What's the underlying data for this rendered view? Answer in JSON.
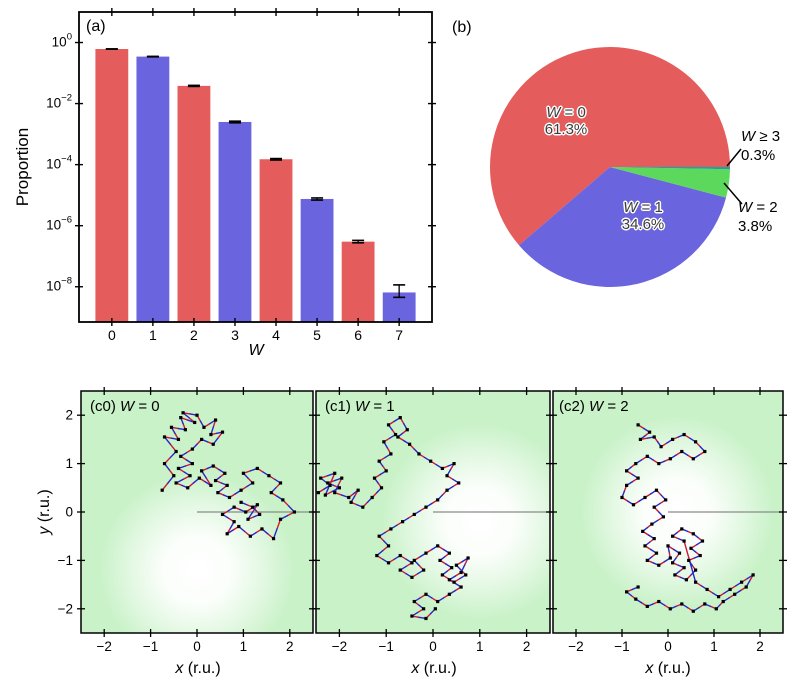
{
  "labels": {
    "panel_a": "(a)",
    "panel_b": "(b)",
    "proportion_ylabel": "Proportion",
    "w_xlabel": "W",
    "x_var": "x",
    "x_unit": " (r.u.)",
    "y_var": "y",
    "y_unit": " (r.u.)"
  },
  "pie_labels": {
    "w0": {
      "var": "W",
      "rest": " = 0",
      "pct": "61.3%"
    },
    "w1": {
      "var": "W",
      "rest": " = 1",
      "pct": "34.6%"
    },
    "w2": {
      "var": "W",
      "rest": " = 2",
      "pct": "3.8%"
    },
    "w3": {
      "var": "W",
      "rest": " ≥ 3",
      "pct": "0.3%"
    }
  },
  "panel_c_titles": [
    {
      "prefix": "(c0)",
      "var": "W",
      "rest": " = 0"
    },
    {
      "prefix": "(c1)",
      "var": "W",
      "rest": " = 1"
    },
    {
      "prefix": "(c2)",
      "var": "W",
      "rest": " = 2"
    }
  ],
  "colors": {
    "bar_red": "#e45c5c",
    "bar_blue": "#6a64de",
    "pie_green": "#5cd85c",
    "pie_teal": "#18a5a0",
    "panel_c_bg": "#c9f2c8",
    "traj_red": "#cc1733",
    "traj_blue": "#2626cc",
    "ref_line_gray": "#8a8a8a",
    "axis_black": "#000000"
  },
  "chart_data": [
    {
      "type": "bar",
      "panel": "a",
      "title": "(a)",
      "xlabel": "W",
      "ylabel": "Proportion",
      "yscale": "log",
      "categories": [
        "0",
        "1",
        "2",
        "3",
        "4",
        "5",
        "6",
        "7"
      ],
      "values": [
        0.613,
        0.346,
        0.038,
        0.0025,
        0.00015,
        7.5e-06,
        3e-07,
        6.5e-09
      ],
      "err_lo": [
        0.605,
        0.34,
        0.0365,
        0.00235,
        0.000142,
        6.9e-06,
        2.75e-07,
        4.5e-09
      ],
      "err_hi": [
        0.62,
        0.352,
        0.0395,
        0.00265,
        0.000158,
        8.1e-06,
        3.3e-07,
        1.15e-08
      ],
      "bar_width": 0.8,
      "xlim": [
        -0.8,
        7.8
      ],
      "ylim": [
        7e-10,
        10
      ],
      "ytick_exponents": [
        0,
        -2,
        -4,
        -6,
        -8
      ],
      "grid": false
    },
    {
      "type": "pie",
      "panel": "b",
      "title": "(b)",
      "startangle": 0,
      "counterclock": true,
      "slices": [
        {
          "label": "W = 0",
          "pct": 61.3,
          "color": "#e45c5c",
          "label_position": "inside"
        },
        {
          "label": "W = 1",
          "pct": 34.6,
          "color": "#6a64de",
          "label_position": "inside"
        },
        {
          "label": "W = 2",
          "pct": 3.8,
          "color": "#5cd85c",
          "label_position": "outside"
        },
        {
          "label": "W ≥ 3",
          "pct": 0.3,
          "color": "#18a5a0",
          "label_position": "outside"
        }
      ]
    },
    {
      "type": "line",
      "panel": "c0",
      "title": "(c0) W = 0",
      "xlabel": "x (r.u.)",
      "ylabel": "y (r.u.)",
      "xlim": [
        -2.5,
        2.5
      ],
      "ylim": [
        -2.5,
        2.5
      ],
      "xticks": [
        "−2",
        "−1",
        "0",
        "1",
        "2"
      ],
      "yticks": [
        "2",
        "1",
        "0",
        "−1",
        "−2"
      ],
      "glow_center": [
        0.0,
        -1.2
      ],
      "glow_radius": 2.1,
      "ref_line": {
        "from": [
          0,
          0
        ],
        "to": [
          2.5,
          0
        ]
      },
      "points": [
        [
          -0.75,
          0.45
        ],
        [
          -0.5,
          0.75
        ],
        [
          -0.7,
          1.0
        ],
        [
          -0.45,
          1.25
        ],
        [
          -0.7,
          1.55
        ],
        [
          -0.4,
          1.5
        ],
        [
          -0.55,
          1.75
        ],
        [
          -0.25,
          1.7
        ],
        [
          -0.35,
          1.95
        ],
        [
          -0.05,
          1.85
        ],
        [
          -0.3,
          2.05
        ],
        [
          0.0,
          2.0
        ],
        [
          0.15,
          1.75
        ],
        [
          0.4,
          1.9
        ],
        [
          0.3,
          1.6
        ],
        [
          0.55,
          1.65
        ],
        [
          0.35,
          1.4
        ],
        [
          0.1,
          1.5
        ],
        [
          -0.1,
          1.3
        ],
        [
          -0.35,
          1.15
        ],
        [
          -0.1,
          1.0
        ],
        [
          -0.4,
          0.9
        ],
        [
          -0.15,
          0.75
        ],
        [
          -0.45,
          0.6
        ],
        [
          -0.2,
          0.5
        ],
        [
          0.05,
          0.7
        ],
        [
          0.3,
          0.55
        ],
        [
          0.1,
          0.85
        ],
        [
          0.35,
          0.95
        ],
        [
          0.6,
          0.8
        ],
        [
          0.4,
          0.65
        ],
        [
          0.65,
          0.55
        ],
        [
          0.45,
          0.4
        ],
        [
          0.7,
          0.3
        ],
        [
          0.95,
          0.45
        ],
        [
          1.2,
          0.6
        ],
        [
          1.0,
          0.8
        ],
        [
          1.3,
          0.9
        ],
        [
          1.55,
          0.75
        ],
        [
          1.8,
          0.6
        ],
        [
          1.6,
          0.4
        ],
        [
          1.85,
          0.25
        ],
        [
          2.1,
          0.0
        ],
        [
          1.8,
          -0.15
        ],
        [
          1.65,
          -0.55
        ],
        [
          1.4,
          -0.35
        ],
        [
          1.15,
          -0.5
        ],
        [
          0.9,
          -0.3
        ],
        [
          0.65,
          -0.45
        ],
        [
          0.8,
          -0.2
        ],
        [
          0.55,
          -0.05
        ],
        [
          0.8,
          0.1
        ],
        [
          1.05,
          0.0
        ],
        [
          1.3,
          0.15
        ],
        [
          1.1,
          -0.15
        ],
        [
          1.35,
          -0.05
        ],
        [
          1.2,
          0.1
        ],
        [
          0.95,
          0.2
        ]
      ]
    },
    {
      "type": "line",
      "panel": "c1",
      "title": "(c1) W = 1",
      "xlabel": "x (r.u.)",
      "ylabel": "",
      "xlim": [
        -2.5,
        2.5
      ],
      "ylim": [
        -2.5,
        2.5
      ],
      "xticks": [
        "−2",
        "−1",
        "0",
        "1",
        "2"
      ],
      "yticks": [],
      "glow_center": [
        1.0,
        -0.2
      ],
      "glow_radius": 2.1,
      "ref_line": {
        "from": [
          0,
          0
        ],
        "to": [
          2.5,
          0
        ]
      },
      "points": [
        [
          -2.45,
          0.4
        ],
        [
          -2.2,
          0.55
        ],
        [
          -2.4,
          0.7
        ],
        [
          -2.1,
          0.8
        ],
        [
          -2.3,
          0.35
        ],
        [
          -2.0,
          0.5
        ],
        [
          -2.25,
          0.6
        ],
        [
          -1.95,
          0.7
        ],
        [
          -2.1,
          0.4
        ],
        [
          -1.8,
          0.3
        ],
        [
          -1.6,
          0.45
        ],
        [
          -1.75,
          0.2
        ],
        [
          -1.5,
          0.1
        ],
        [
          -1.3,
          0.3
        ],
        [
          -1.1,
          0.5
        ],
        [
          -1.25,
          0.7
        ],
        [
          -1.0,
          0.85
        ],
        [
          -1.15,
          1.05
        ],
        [
          -0.9,
          1.2
        ],
        [
          -1.05,
          1.45
        ],
        [
          -0.8,
          1.6
        ],
        [
          -0.95,
          1.8
        ],
        [
          -0.7,
          1.95
        ],
        [
          -0.55,
          1.7
        ],
        [
          -0.75,
          1.55
        ],
        [
          -0.5,
          1.4
        ],
        [
          -0.3,
          1.2
        ],
        [
          -0.05,
          1.05
        ],
        [
          0.2,
          0.9
        ],
        [
          0.45,
          1.0
        ],
        [
          0.3,
          0.75
        ],
        [
          0.55,
          0.6
        ],
        [
          0.3,
          0.45
        ],
        [
          0.1,
          0.25
        ],
        [
          -0.15,
          0.1
        ],
        [
          -0.4,
          -0.05
        ],
        [
          -0.65,
          -0.2
        ],
        [
          -0.9,
          -0.35
        ],
        [
          -1.15,
          -0.5
        ],
        [
          -0.95,
          -0.7
        ],
        [
          -1.2,
          -0.9
        ],
        [
          -0.95,
          -1.05
        ],
        [
          -0.7,
          -0.9
        ],
        [
          -0.45,
          -1.05
        ],
        [
          -0.7,
          -1.2
        ],
        [
          -0.45,
          -1.35
        ],
        [
          -0.2,
          -1.2
        ],
        [
          -0.4,
          -1.0
        ],
        [
          -0.15,
          -0.85
        ],
        [
          0.1,
          -0.7
        ],
        [
          0.35,
          -0.85
        ],
        [
          0.15,
          -1.0
        ],
        [
          0.4,
          -1.15
        ],
        [
          0.2,
          -1.3
        ],
        [
          0.45,
          -1.45
        ],
        [
          0.7,
          -1.3
        ],
        [
          0.5,
          -1.1
        ],
        [
          0.75,
          -0.95
        ],
        [
          0.6,
          -1.25
        ],
        [
          0.35,
          -1.4
        ],
        [
          0.6,
          -1.55
        ],
        [
          0.35,
          -1.7
        ],
        [
          0.1,
          -1.85
        ],
        [
          -0.15,
          -1.7
        ],
        [
          -0.4,
          -1.85
        ],
        [
          -0.2,
          -2.0
        ],
        [
          -0.45,
          -2.15
        ],
        [
          -0.15,
          -2.2
        ],
        [
          0.05,
          -2.0
        ]
      ]
    },
    {
      "type": "line",
      "panel": "c2",
      "title": "(c2) W = 2",
      "xlabel": "x (r.u.)",
      "ylabel": "",
      "xlim": [
        -2.5,
        2.5
      ],
      "ylim": [
        -2.5,
        2.5
      ],
      "xticks": [
        "−2",
        "−1",
        "0",
        "1",
        "2"
      ],
      "yticks": [],
      "glow_center": [
        0.2,
        0.0
      ],
      "glow_radius": 2.1,
      "ref_line": {
        "from": [
          0,
          0
        ],
        "to": [
          2.5,
          0
        ]
      },
      "points": [
        [
          -0.65,
          1.8
        ],
        [
          -0.4,
          1.65
        ],
        [
          -0.6,
          1.5
        ],
        [
          -0.3,
          1.55
        ],
        [
          -0.15,
          1.35
        ],
        [
          0.1,
          1.5
        ],
        [
          0.35,
          1.6
        ],
        [
          0.6,
          1.45
        ],
        [
          0.8,
          1.25
        ],
        [
          0.55,
          1.1
        ],
        [
          0.3,
          1.25
        ],
        [
          0.05,
          1.1
        ],
        [
          -0.2,
          1.0
        ],
        [
          -0.45,
          1.15
        ],
        [
          -0.7,
          1.0
        ],
        [
          -0.9,
          0.85
        ],
        [
          -0.65,
          0.7
        ],
        [
          -0.9,
          0.55
        ],
        [
          -1.0,
          0.3
        ],
        [
          -0.75,
          0.15
        ],
        [
          -0.5,
          0.3
        ],
        [
          -0.25,
          0.45
        ],
        [
          -0.05,
          0.25
        ],
        [
          -0.3,
          0.1
        ],
        [
          -0.1,
          -0.1
        ],
        [
          -0.35,
          -0.25
        ],
        [
          -0.55,
          -0.4
        ],
        [
          -0.3,
          -0.55
        ],
        [
          -0.5,
          -0.7
        ],
        [
          -0.25,
          -0.85
        ],
        [
          -0.45,
          -1.0
        ],
        [
          -0.2,
          -1.1
        ],
        [
          0.05,
          -0.95
        ],
        [
          0.0,
          -0.7
        ],
        [
          0.25,
          -0.85
        ],
        [
          0.1,
          -1.05
        ],
        [
          0.35,
          -1.15
        ],
        [
          0.15,
          -1.3
        ],
        [
          0.4,
          -1.4
        ],
        [
          0.6,
          -1.2
        ],
        [
          0.45,
          -1.0
        ],
        [
          0.7,
          -0.9
        ],
        [
          0.5,
          -0.75
        ],
        [
          0.75,
          -0.6
        ],
        [
          0.55,
          -0.45
        ],
        [
          0.3,
          -0.35
        ],
        [
          0.1,
          -0.5
        ],
        [
          0.35,
          -0.6
        ],
        [
          0.6,
          -1.45
        ],
        [
          0.85,
          -1.6
        ],
        [
          1.1,
          -1.75
        ],
        [
          1.35,
          -1.6
        ],
        [
          1.6,
          -1.45
        ],
        [
          1.85,
          -1.3
        ],
        [
          1.7,
          -1.55
        ],
        [
          1.45,
          -1.7
        ],
        [
          1.2,
          -1.85
        ],
        [
          1.05,
          -2.0
        ],
        [
          0.8,
          -1.9
        ],
        [
          0.55,
          -2.05
        ],
        [
          0.3,
          -1.9
        ],
        [
          0.05,
          -2.0
        ],
        [
          -0.2,
          -1.85
        ],
        [
          -0.45,
          -1.95
        ],
        [
          -0.7,
          -1.8
        ],
        [
          -0.9,
          -1.65
        ],
        [
          -0.65,
          -1.55
        ]
      ]
    }
  ]
}
